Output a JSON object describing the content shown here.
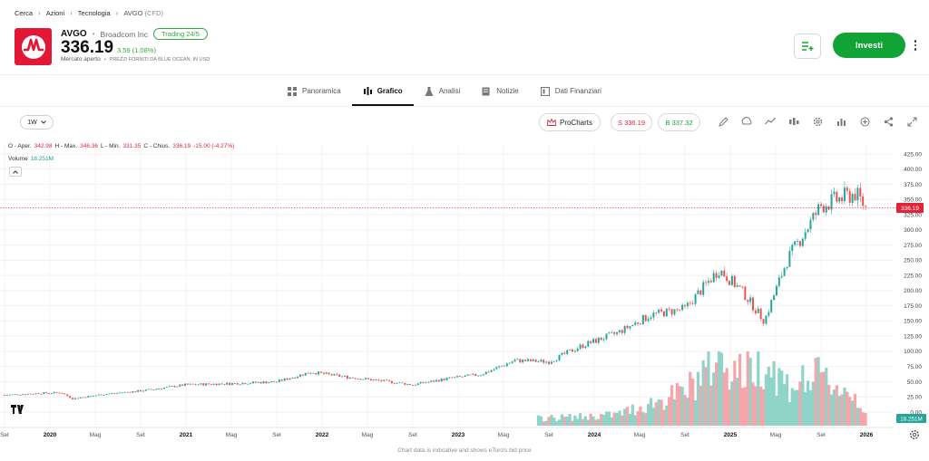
{
  "breadcrumb": [
    "Cerca",
    "Azioni",
    "Tecnologia",
    "AVGO"
  ],
  "breadcrumb_suffix": "(CFD)",
  "header": {
    "ticker": "AVGO",
    "company": "Broadcom Inc",
    "badge": "Trading 24/5",
    "price": "336.19",
    "change": "3.59 (1.08%)",
    "market_status": "Mercato aperto",
    "price_source": "PREZZI FORNITI DA BLUE OCEAN, IN USD",
    "invest_label": "Investi"
  },
  "tabs": [
    {
      "label": "Panoramica",
      "icon": "grid-icon",
      "active": false
    },
    {
      "label": "Grafico",
      "icon": "candles-icon",
      "active": true
    },
    {
      "label": "Analisi",
      "icon": "flask-icon",
      "active": false
    },
    {
      "label": "Notizie",
      "icon": "news-icon",
      "active": false
    },
    {
      "label": "Dati Finanziari",
      "icon": "financials-icon",
      "active": false
    }
  ],
  "toolbar": {
    "interval": "1W",
    "procharts": "ProCharts",
    "sell": "S 336.19",
    "buy": "B 337.32",
    "icons": [
      "draw-icon",
      "indicators-icon",
      "line-type-icon",
      "candle-type-icon",
      "gear-icon",
      "bars-icon",
      "add-icon",
      "share-icon",
      "fullscreen-icon"
    ]
  },
  "legend": {
    "o_label": "O - Aper.",
    "o": "342.98",
    "h_label": "H - Max.",
    "h": "346.36",
    "l_label": "L - Min.",
    "l": "331.35",
    "c_label": "C - Chius.",
    "c": "336.19",
    "chg": "-15.00 (-4.27%)",
    "volume_label": "Volume",
    "volume": "18.251M"
  },
  "colors": {
    "up": "#26a69a",
    "down": "#ef5350",
    "vol_up": "#8fd4c8",
    "vol_down": "#f5a6ab",
    "last": "#e0253a",
    "accent": "#12a336"
  },
  "chart_data": {
    "type": "candlestick",
    "price_axis_ticks": [
      "425.00",
      "400.00",
      "375.00",
      "350.00",
      "325.00",
      "300.00",
      "275.00",
      "250.00",
      "225.00",
      "200.00",
      "175.00",
      "150.00",
      "125.00",
      "100.00",
      "75.00",
      "50.00",
      "25.00",
      "0.00"
    ],
    "volume_axis_ticks": [
      "100.00",
      "75.00",
      "50.00",
      "25.00",
      "0.00"
    ],
    "time_axis_ticks": [
      "Set",
      "2020",
      "Mag",
      "Set",
      "2021",
      "Mag",
      "Set",
      "2022",
      "Mag",
      "Set",
      "2023",
      "Mag",
      "Set",
      "2024",
      "Mag",
      "Set",
      "2025",
      "Mag",
      "Set",
      "2026"
    ],
    "ylim": [
      0,
      425
    ],
    "last_price": "336.19",
    "last_volume": "18.251M",
    "price_series": [
      [
        "2019-09",
        28
      ],
      [
        "2019-12",
        31
      ],
      [
        "2020-02",
        32
      ],
      [
        "2020-03",
        22
      ],
      [
        "2020-06",
        30
      ],
      [
        "2020-09",
        35
      ],
      [
        "2021-01",
        45
      ],
      [
        "2021-05",
        47
      ],
      [
        "2021-09",
        50
      ],
      [
        "2021-12",
        66
      ],
      [
        "2022-03",
        58
      ],
      [
        "2022-06",
        52
      ],
      [
        "2022-09",
        45
      ],
      [
        "2022-12",
        55
      ],
      [
        "2023-03",
        62
      ],
      [
        "2023-06",
        85
      ],
      [
        "2023-09",
        83
      ],
      [
        "2023-12",
        110
      ],
      [
        "2024-03",
        130
      ],
      [
        "2024-06",
        160
      ],
      [
        "2024-09",
        170
      ],
      [
        "2024-12",
        235
      ],
      [
        "2025-02",
        200
      ],
      [
        "2025-04",
        150
      ],
      [
        "2025-06",
        250
      ],
      [
        "2025-09",
        340
      ],
      [
        "2025-12",
        360
      ],
      [
        "2026-01",
        336
      ]
    ],
    "volume_series": [
      [
        "2023-08",
        10
      ],
      [
        "2023-12",
        12
      ],
      [
        "2024-03",
        15
      ],
      [
        "2024-06",
        30
      ],
      [
        "2024-09",
        45
      ],
      [
        "2024-12",
        95
      ],
      [
        "2025-02",
        70
      ],
      [
        "2025-04",
        90
      ],
      [
        "2025-06",
        55
      ],
      [
        "2025-09",
        65
      ],
      [
        "2025-12",
        40
      ],
      [
        "2026-01",
        18
      ]
    ]
  },
  "footer": "Chart data is indicative and shows eToro's bid price"
}
